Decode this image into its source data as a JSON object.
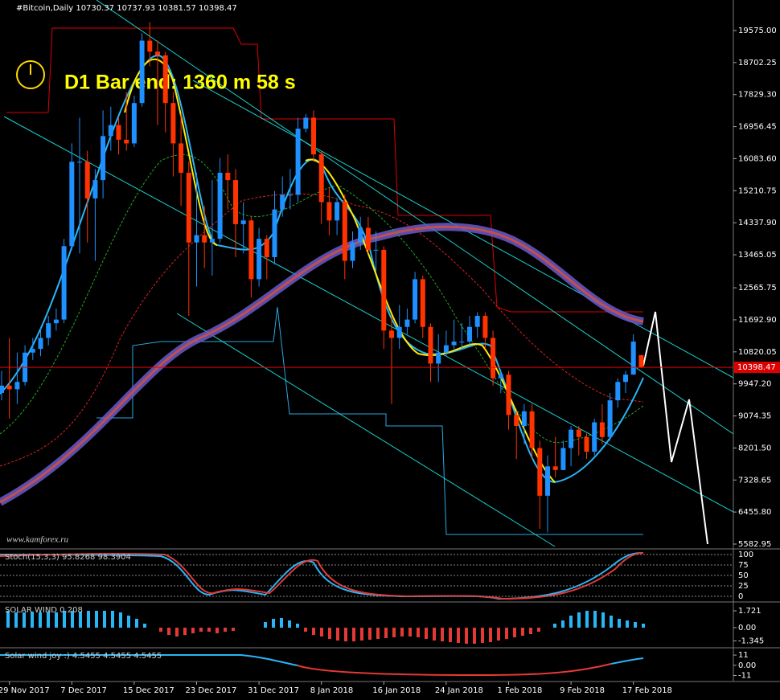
{
  "chart_data": {
    "type": "candlestick",
    "title": "#Bitcoin,Daily  10730.37 10737.93 10381.57 10398.47",
    "annotation": "D1 Bar end: 1360 m 58 s",
    "watermark": "www.kamforex.ru",
    "up_color": "#1e90ff",
    "down_color": "#ff3300",
    "open": [
      9700,
      9900,
      9800,
      10000,
      10800,
      10900,
      11200,
      11600,
      11700,
      13700,
      16000,
      16000,
      15000,
      15500,
      16700,
      17000,
      16600,
      16500,
      17600,
      19300,
      19000,
      18900,
      17600,
      16500,
      15700,
      13800,
      14000,
      13800,
      13900,
      15700,
      15500,
      14300,
      14400,
      12800,
      13900,
      13400,
      14700,
      15100,
      15100,
      16900,
      17200,
      16200,
      14900,
      14400,
      14900,
      13300,
      13800,
      14200,
      13600,
      13600,
      11400,
      11200,
      11500,
      11700,
      12800,
      11500,
      10500,
      10800,
      11000,
      11100,
      11100,
      11500,
      11800,
      11200,
      10100,
      10200,
      9100,
      8800,
      9200,
      8200,
      6900,
      7700,
      7600,
      8200,
      8700,
      8500,
      8100,
      8900,
      8500,
      9500,
      10000,
      10200,
      10730.37
    ],
    "high": [
      10300,
      11200,
      10800,
      11000,
      11200,
      11500,
      11800,
      12000,
      13900,
      16500,
      17200,
      16300,
      15800,
      17400,
      17500,
      17200,
      17900,
      17800,
      19500,
      19800,
      19300,
      19000,
      17900,
      17300,
      16000,
      15700,
      14800,
      15500,
      16100,
      16200,
      15800,
      14900,
      14500,
      14200,
      14000,
      15200,
      15600,
      15800,
      17200,
      17300,
      17400,
      16300,
      15300,
      15000,
      15100,
      14100,
      14500,
      14500,
      14100,
      13700,
      11800,
      12100,
      12000,
      13000,
      12900,
      11600,
      11300,
      11400,
      11700,
      11600,
      11800,
      11900,
      11900,
      11400,
      10300,
      10300,
      9200,
      9400,
      9400,
      8400,
      8000,
      8500,
      8400,
      8800,
      8800,
      8600,
      9000,
      9400,
      9700,
      10100,
      10300,
      11300,
      10737.93
    ],
    "low": [
      9500,
      9000,
      9400,
      9900,
      10600,
      10700,
      11000,
      11400,
      11600,
      13600,
      13500,
      13800,
      13300,
      15000,
      16300,
      16200,
      16300,
      16400,
      17500,
      18600,
      17000,
      16800,
      15600,
      14800,
      11800,
      12600,
      13100,
      12900,
      13800,
      14700,
      13400,
      13500,
      12300,
      12600,
      12800,
      13200,
      14500,
      14700,
      14900,
      16800,
      16000,
      14300,
      14000,
      14000,
      12800,
      13100,
      13600,
      13500,
      13000,
      10900,
      9400,
      10900,
      11300,
      11600,
      11200,
      10000,
      10000,
      10700,
      10900,
      10900,
      11000,
      11200,
      10900,
      9900,
      9700,
      8700,
      7900,
      8300,
      7900,
      6000,
      5900,
      7400,
      7600,
      7700,
      8000,
      7900,
      8000,
      8300,
      8400,
      9300,
      9700,
      10200,
      10381.57
    ],
    "close": [
      9900,
      9800,
      10000,
      10800,
      10900,
      11200,
      11600,
      11700,
      13700,
      16000,
      16000,
      15000,
      15500,
      16700,
      17000,
      16600,
      16500,
      17600,
      19300,
      19000,
      18900,
      17600,
      16500,
      15700,
      13800,
      14000,
      13800,
      13900,
      15700,
      15500,
      14300,
      14400,
      12800,
      13900,
      13400,
      14700,
      15100,
      15100,
      16900,
      17200,
      16200,
      14900,
      14400,
      14900,
      13300,
      13800,
      14200,
      13600,
      13600,
      11400,
      11200,
      11500,
      11700,
      12800,
      11500,
      10500,
      10800,
      11000,
      11100,
      11100,
      11500,
      11800,
      11200,
      10100,
      10200,
      9100,
      8800,
      9200,
      8200,
      6900,
      7700,
      7600,
      8200,
      8700,
      8500,
      8100,
      8900,
      8500,
      9500,
      10000,
      10200,
      11100,
      10398.47
    ],
    "current_price": 10398.47,
    "ylim": [
      5473,
      20407
    ],
    "yticks": [
      {
        "value": 19575,
        "label": "19575.00"
      },
      {
        "value": 18702.25,
        "label": "18702.25"
      },
      {
        "value": 17829.3,
        "label": "17829.30"
      },
      {
        "value": 16956.45,
        "label": "16956.45"
      },
      {
        "value": 16083.6,
        "label": "16083.60"
      },
      {
        "value": 15210.75,
        "label": "15210.75"
      },
      {
        "value": 14337.9,
        "label": "14337.90"
      },
      {
        "value": 13465.05,
        "label": "13465.05"
      },
      {
        "value": 12565.75,
        "label": "12565.75"
      },
      {
        "value": 11692.9,
        "label": "11692.90"
      },
      {
        "value": 10820.05,
        "label": "10820.05"
      },
      {
        "value": 9947.2,
        "label": "9947.20"
      },
      {
        "value": 9074.35,
        "label": "9074.35"
      },
      {
        "value": 8201.5,
        "label": "8201.50"
      },
      {
        "value": 7328.65,
        "label": "7328.65"
      },
      {
        "value": 6455.8,
        "label": "6455.80"
      },
      {
        "value": 5582.95,
        "label": "5582.95"
      }
    ],
    "xticks": [
      {
        "value": 1,
        "label": "29 Nov 2017"
      },
      {
        "value": 9,
        "label": "7 Dec 2017"
      },
      {
        "value": 17,
        "label": "15 Dec 2017"
      },
      {
        "value": 25,
        "label": "23 Dec 2017"
      },
      {
        "value": 33,
        "label": "31 Dec 2017"
      },
      {
        "value": 41,
        "label": "8 Jan 2018"
      },
      {
        "value": 49,
        "label": "16 Jan 2018"
      },
      {
        "value": 57,
        "label": "24 Jan 2018"
      },
      {
        "value": 65,
        "label": "1 Feb 2018"
      },
      {
        "value": 73,
        "label": "9 Feb 2018"
      },
      {
        "value": 81,
        "label": "17 Feb 2018"
      }
    ],
    "indicator_panes": [
      {
        "label": "Stoch(15,3,3) 95.8268 98.3904",
        "ylim": [
          -11.5,
          111.5
        ],
        "yticks": [
          100,
          75,
          50,
          25,
          0
        ]
      },
      {
        "label": "SOLAR WIND 0.208",
        "ylim": [
          -1.97,
          2.54
        ],
        "yticks": [
          1.721,
          {
            "value": 0,
            "label": "0.00"
          },
          -1.345
        ]
      },
      {
        "label": "Solar wind joy :) 4.5455 4.5455 4.5455",
        "ylim": [
          -17.5,
          18
        ],
        "yticks": [
          11,
          {
            "value": 0,
            "label": "0.00"
          },
          -11
        ]
      }
    ]
  }
}
